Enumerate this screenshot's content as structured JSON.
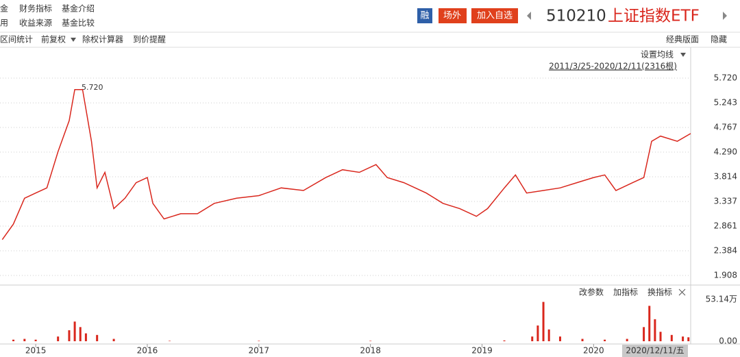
{
  "nav": {
    "row1": [
      "金",
      "财务指标",
      "基金介绍"
    ],
    "row2": [
      "用",
      "收益来源",
      "基金比较"
    ]
  },
  "header": {
    "badges": [
      "融",
      "场外",
      "加入自选"
    ],
    "code": "510210",
    "name": "上证指数ETF"
  },
  "toolbar": {
    "left": [
      "区间统计",
      "前复权",
      "除权计算器",
      "到价提醒"
    ],
    "right": [
      "经典版面",
      "隐藏"
    ]
  },
  "chart_data": [
    {
      "type": "line",
      "settings_label": "设置均线",
      "range_label": "2011/3/25-2020/12/11(2316根)",
      "peak_label": "5.720",
      "x": [
        2014.7,
        2014.8,
        2014.9,
        2015.0,
        2015.1,
        2015.2,
        2015.3,
        2015.35,
        2015.42,
        2015.5,
        2015.55,
        2015.62,
        2015.7,
        2015.8,
        2015.9,
        2016.0,
        2016.05,
        2016.15,
        2016.3,
        2016.45,
        2016.6,
        2016.8,
        2017.0,
        2017.2,
        2017.4,
        2017.6,
        2017.75,
        2017.9,
        2018.05,
        2018.15,
        2018.3,
        2018.5,
        2018.65,
        2018.8,
        2018.95,
        2019.05,
        2019.2,
        2019.3,
        2019.4,
        2019.55,
        2019.7,
        2019.85,
        2020.0,
        2020.1,
        2020.2,
        2020.35,
        2020.45,
        2020.52,
        2020.6,
        2020.75,
        2020.87
      ],
      "series": [
        {
          "color": "#d9261c",
          "values": [
            2.6,
            2.9,
            3.4,
            3.5,
            3.6,
            4.3,
            4.9,
            5.5,
            5.5,
            4.5,
            3.6,
            3.9,
            3.2,
            3.4,
            3.7,
            3.8,
            3.3,
            3.0,
            3.1,
            3.1,
            3.3,
            3.4,
            3.45,
            3.6,
            3.55,
            3.8,
            3.95,
            3.9,
            4.05,
            3.8,
            3.7,
            3.5,
            3.3,
            3.2,
            3.05,
            3.2,
            3.6,
            3.85,
            3.5,
            3.55,
            3.6,
            3.7,
            3.8,
            3.85,
            3.55,
            3.7,
            3.8,
            4.5,
            4.6,
            4.5,
            4.65
          ]
        }
      ],
      "xlim": [
        2014.68,
        2020.87
      ],
      "xticks": [
        2015,
        2016,
        2017,
        2018,
        2019,
        2020
      ],
      "ylim": [
        1.749,
        6.303
      ],
      "yticks": [
        {
          "value": 5.72,
          "label": "5.720"
        },
        5.243,
        4.767,
        {
          "value": 4.29,
          "label": "4.290"
        },
        3.814,
        3.337,
        2.861,
        2.384,
        1.908
      ],
      "grid": true
    },
    {
      "type": "bar",
      "buttons": [
        "改参数",
        "加指标",
        "换指标"
      ],
      "cursor_label": "2020/12/11/五",
      "x": [
        2014.8,
        2014.9,
        2015.0,
        2015.2,
        2015.3,
        2015.35,
        2015.4,
        2015.45,
        2015.55,
        2015.7,
        2016.2,
        2017.0,
        2018.0,
        2019.2,
        2019.45,
        2019.5,
        2019.55,
        2019.6,
        2019.7,
        2019.9,
        2020.1,
        2020.3,
        2020.45,
        2020.5,
        2020.55,
        2020.6,
        2020.7,
        2020.8,
        2020.85
      ],
      "values": [
        2,
        3,
        2,
        6,
        14,
        25,
        18,
        10,
        8,
        3,
        0.5,
        0.5,
        0.5,
        1,
        6,
        20,
        50,
        15,
        6,
        3,
        2,
        3,
        18,
        45,
        28,
        12,
        8,
        6,
        5
      ],
      "color": "#d9261c",
      "xlim": [
        2014.68,
        2020.87
      ],
      "ylim": [
        0,
        53.14
      ],
      "yticks": [
        {
          "value": 53.14,
          "label": "53.14万"
        },
        {
          "value": 0,
          "label": "0.00"
        }
      ]
    }
  ]
}
